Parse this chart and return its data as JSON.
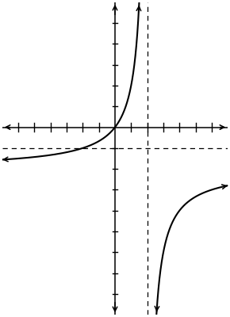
{
  "xlim": [
    -7,
    7
  ],
  "ylim": [
    -9,
    6
  ],
  "xticks": [
    -6,
    -5,
    -4,
    -3,
    -2,
    -1,
    1,
    2,
    3,
    4,
    5,
    6
  ],
  "yticks": [
    -8,
    -7,
    -6,
    -5,
    -4,
    -3,
    -2,
    -1,
    1,
    2,
    3,
    4,
    5
  ],
  "vertical_asymptote": 2,
  "horizontal_asymptote": -1,
  "curve_color": "black",
  "asymptote_color": "black",
  "asymptote_linestyle": "--",
  "axis_color": "black",
  "background_color": "white",
  "figsize": [
    2.9,
    4.0
  ],
  "dpi": 100,
  "tick_half_len_x": 0.22,
  "tick_half_len_y": 0.15,
  "linewidth": 1.5
}
